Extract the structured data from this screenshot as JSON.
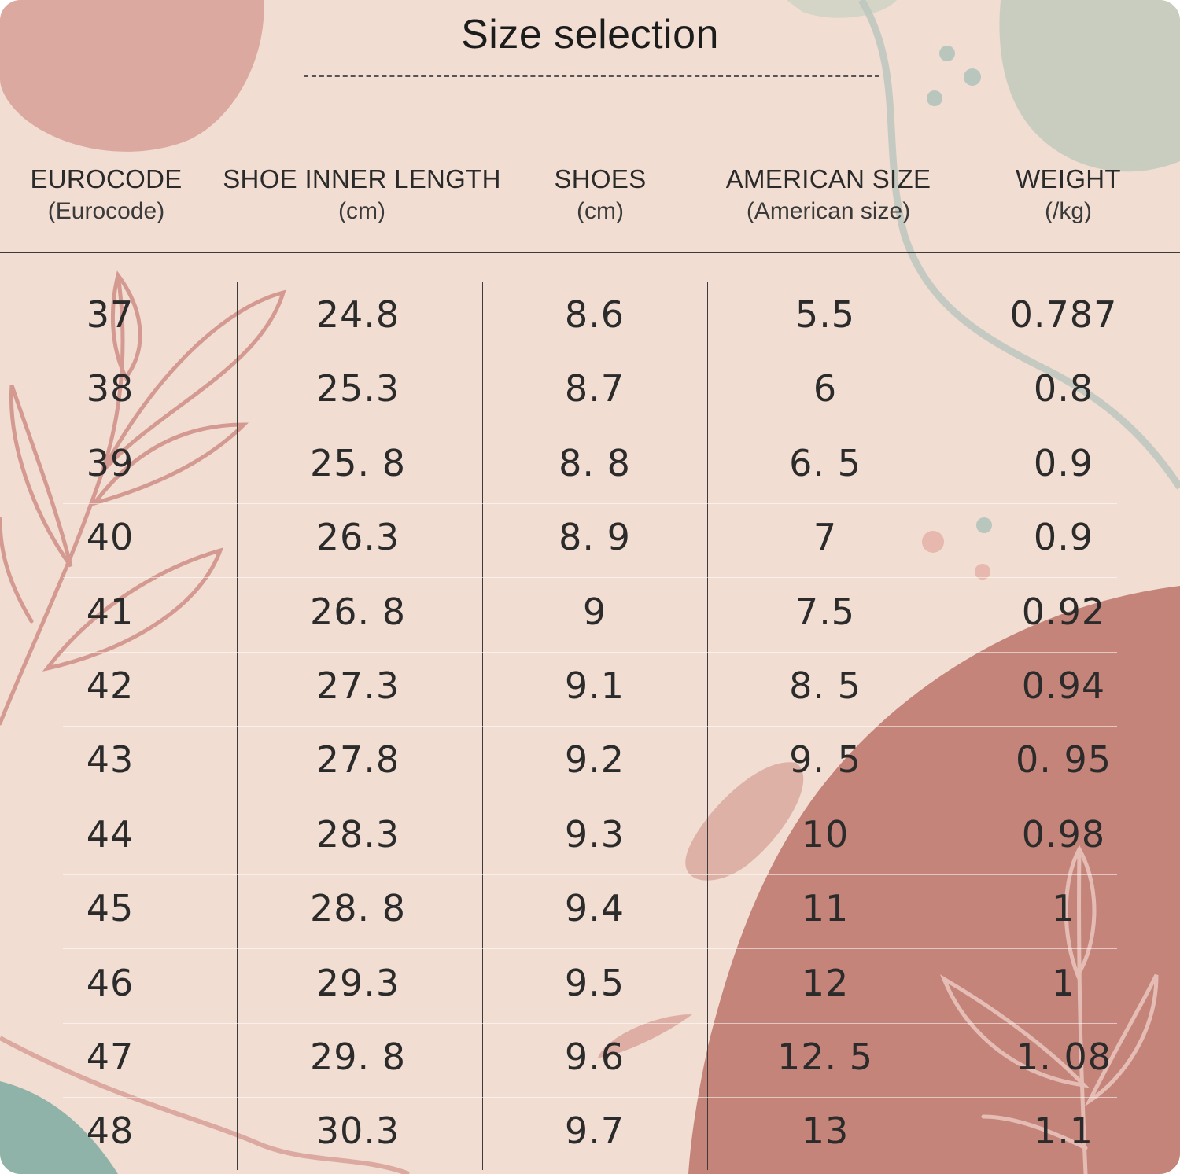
{
  "title": "Size selection",
  "headers": [
    {
      "main": "EUROCODE",
      "sub": "(Eurocode)"
    },
    {
      "main": "SHOE INNER LENGTH",
      "sub": "(cm)"
    },
    {
      "main": "SHOES",
      "sub": "(cm)"
    },
    {
      "main": "AMERICAN SIZE",
      "sub": "(American size)"
    },
    {
      "main": "WEIGHT",
      "sub": "(/kg)"
    }
  ],
  "rows": [
    [
      "37",
      "24.8",
      "8.6",
      "5.5",
      "0.787"
    ],
    [
      "38",
      "25.3",
      "8.7",
      "6",
      "0.8"
    ],
    [
      "39",
      "25. 8",
      "8. 8",
      "6. 5",
      "0.9"
    ],
    [
      "40",
      "26.3",
      "8. 9",
      "7",
      "0.9"
    ],
    [
      "41",
      "26. 8",
      "9",
      "7.5",
      "0.92"
    ],
    [
      "42",
      "27.3",
      "9.1",
      "8. 5",
      "0.94"
    ],
    [
      "43",
      "27.8",
      "9.2",
      "9. 5",
      "0. 95"
    ],
    [
      "44",
      "28.3",
      "9.3",
      "10",
      "0.98"
    ],
    [
      "45",
      "28. 8",
      "9.4",
      "11",
      "1"
    ],
    [
      "46",
      "29.3",
      "9.5",
      "12",
      "1"
    ],
    [
      "47",
      "29. 8",
      "9.6",
      "12. 5",
      "1. 08"
    ],
    [
      "48",
      "30.3",
      "9.7",
      "13",
      "1.1"
    ]
  ],
  "colors": {
    "background": "#f1ddd1",
    "blob_pink": "#dba9a0",
    "blob_terracotta": "#c4847a",
    "blob_sage": "#c9cdc0",
    "blob_teal": "#8fb3a9",
    "leaf_stroke": "#d49a91"
  }
}
